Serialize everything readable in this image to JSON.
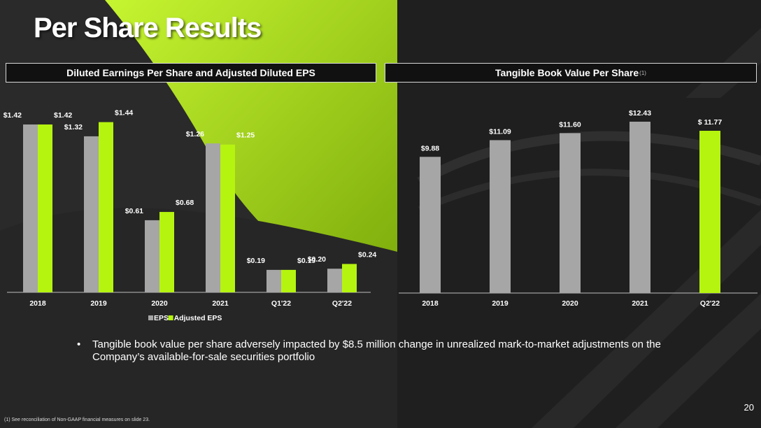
{
  "title": "Per Share Results",
  "colors": {
    "accent": "#b5f40f",
    "eps_bar": "#a6a6a6",
    "background": "#2b2b2b"
  },
  "panels": {
    "left_header": "Diluted Earnings Per Share and Adjusted Diluted EPS",
    "right_header": "Tangible Book Value Per Share",
    "right_header_sup": "(1)"
  },
  "chart_data": [
    {
      "type": "bar",
      "title": "Diluted Earnings Per Share and Adjusted Diluted EPS",
      "categories": [
        "2018",
        "2019",
        "2020",
        "2021",
        "Q1'22",
        "Q2'22"
      ],
      "series": [
        {
          "name": "EPS",
          "color": "#a6a6a6",
          "values": [
            1.42,
            1.32,
            0.61,
            1.26,
            0.19,
            0.2
          ],
          "labels": [
            "$1.42",
            "$1.32",
            "$0.61",
            "$1.26",
            "$0.19",
            "$0.20"
          ]
        },
        {
          "name": "Adjusted EPS",
          "color": "#b5f40f",
          "values": [
            1.42,
            1.44,
            0.68,
            1.25,
            0.19,
            0.24
          ],
          "labels": [
            "$1.42",
            "$1.44",
            "$0.68",
            "$1.25",
            "$0.19",
            "$0.24"
          ]
        }
      ],
      "legend": "bottom",
      "grid": false
    },
    {
      "type": "bar",
      "title": "Tangible Book Value Per Share",
      "categories": [
        "2018",
        "2019",
        "2020",
        "2021",
        "Q2'22"
      ],
      "values": [
        9.88,
        11.09,
        11.6,
        12.43,
        11.77
      ],
      "labels": [
        "$9.88",
        "$11.09",
        "$11.60",
        "$12.43",
        "$ 11.77"
      ],
      "colors": [
        "#a6a6a6",
        "#a6a6a6",
        "#a6a6a6",
        "#a6a6a6",
        "#b5f40f"
      ],
      "grid": false
    }
  ],
  "bullet": "Tangible book value per share adversely impacted by $8.5 million change in unrealized mark-to-market adjustments on the Company’s available-for-sale securities portfolio",
  "bullet_mark": "•",
  "page_number": "20",
  "footnote": "(1)  See reconciliation of Non-GAAP financial measures on slide 23."
}
